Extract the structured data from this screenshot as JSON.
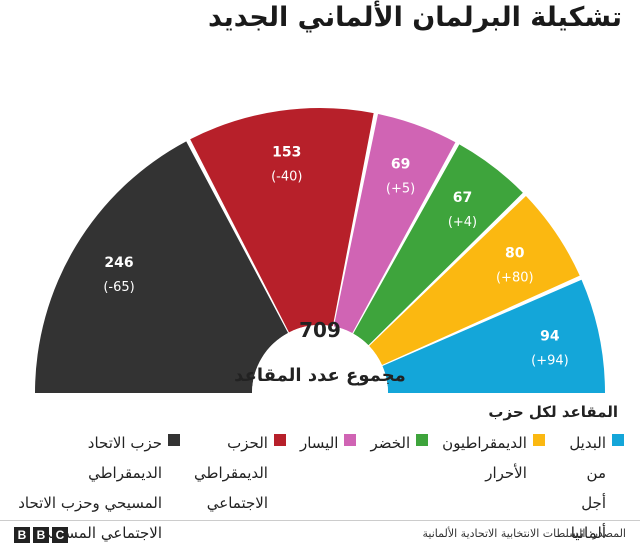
{
  "title": "تشكيلة البرلمان الألماني الجديد",
  "chart_data": {
    "type": "parliament-donut",
    "total": 709,
    "total_label": "مجموع عدد المقاعد",
    "slices": [
      {
        "party": "حزب الاتحاد الديمقراطي\nالمسيحي وحزب الاتحاد\nالاجتماعي المسيحي",
        "seats": 246,
        "change": "(-65)",
        "color": "#333333"
      },
      {
        "party": "الحزب\nالديمقراطي\nالاجتماعي",
        "seats": 153,
        "change": "(-40)",
        "color": "#b7202a"
      },
      {
        "party": "اليسار",
        "seats": 69,
        "change": "(+5)",
        "color": "#d064b4"
      },
      {
        "party": "الخضر",
        "seats": 67,
        "change": "(+4)",
        "color": "#3ea43c"
      },
      {
        "party": "الديمقراطيون\nالأحرار",
        "seats": 80,
        "change": "(+80)",
        "color": "#fbb811"
      },
      {
        "party": "البديل\nمن أجل\nألمانيا",
        "seats": 94,
        "change": "(+94)",
        "color": "#14a6d9"
      }
    ]
  },
  "legend_title": "المقاعد لكل حزب",
  "source": "المصدر: السلطات الانتخابية الاتحادية الألمانية",
  "logo": [
    "B",
    "B",
    "C"
  ]
}
